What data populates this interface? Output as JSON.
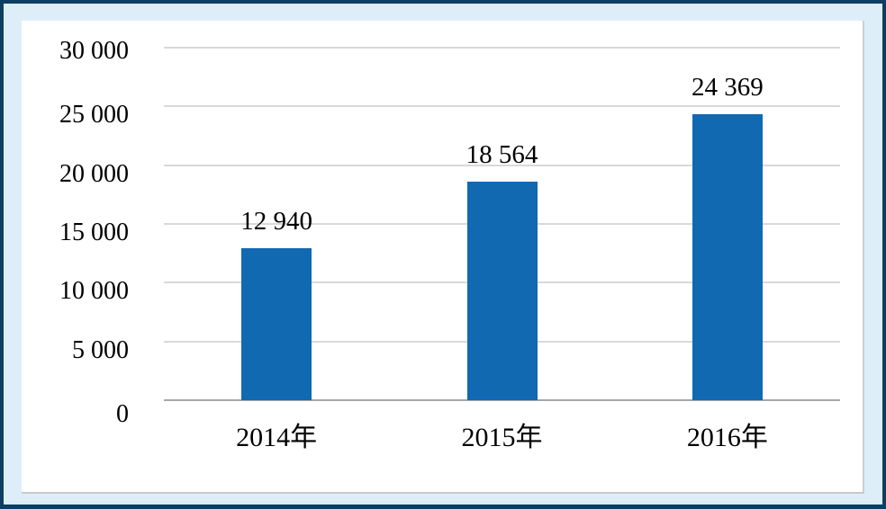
{
  "chart_data": {
    "type": "bar",
    "categories": [
      "2014年",
      "2015年",
      "2016年"
    ],
    "values": [
      12940,
      18564,
      24369
    ],
    "value_labels": [
      "12 940",
      "18 564",
      "24 369"
    ],
    "title": "",
    "xlabel": "",
    "ylabel": "",
    "ylim": [
      0,
      30000
    ],
    "y_tick_step": 5000,
    "y_ticks": [
      0,
      5000,
      10000,
      15000,
      20000,
      25000,
      30000
    ],
    "y_tick_labels": [
      "0",
      "5 000",
      "10 000",
      "15 000",
      "20 000",
      "25 000",
      "30 000"
    ],
    "grid": true,
    "legend": "none",
    "bar_color": "#1169b2"
  },
  "colors": {
    "outer_border": "#0d3e63",
    "frame_background": "#ddeef9",
    "plot_background": "#ffffff",
    "gridline": "#d9d9d9",
    "axis_line": "#a6a6a6",
    "label_text": "#000000"
  }
}
